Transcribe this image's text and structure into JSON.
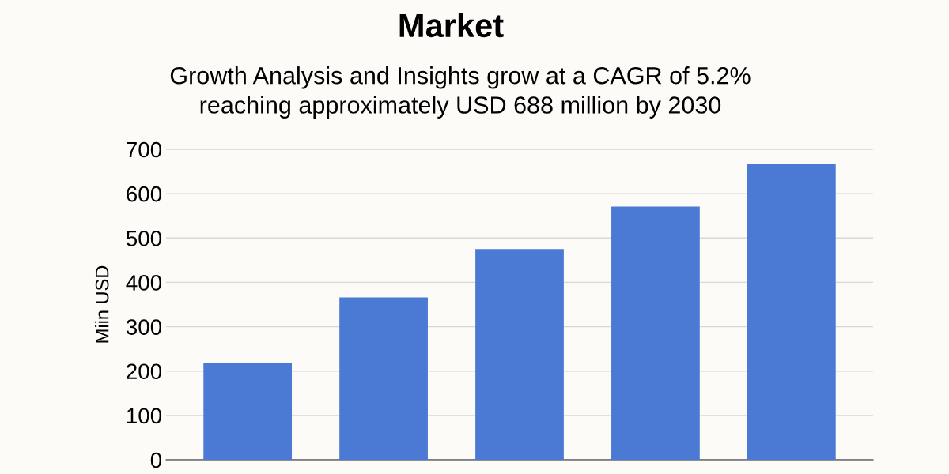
{
  "chart_data": {
    "type": "bar",
    "title": "Market",
    "subtitle": "Growth Analysis and Insights grow at a CAGR of 5.2%\nreaching approximately USD 688 million by 2030",
    "ylabel": "Miin USD",
    "categories": [
      null,
      null,
      null,
      null,
      null
    ],
    "values": [
      218,
      366,
      475,
      571,
      666
    ],
    "color": "#4a7ad4",
    "ylim": [
      0,
      700
    ],
    "yticks": [
      0,
      100,
      200,
      300,
      400,
      500,
      600,
      700
    ],
    "grid": "y",
    "tick_labels": "y"
  }
}
